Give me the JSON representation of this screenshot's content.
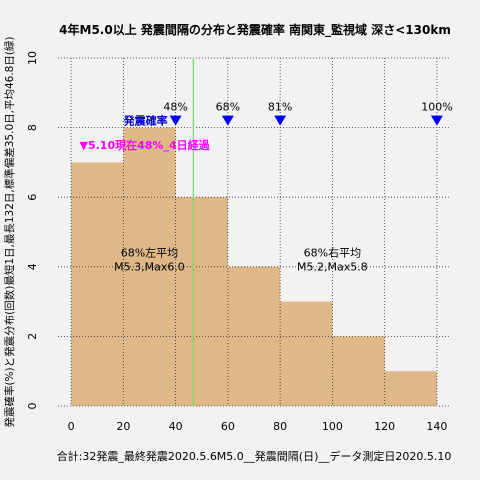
{
  "chart_data": {
    "type": "bar",
    "title": "4年M5.0以上 発震間隔の分布と発震確率 南関東_監視域 深さ<130km",
    "ylabel": "発震確率(%)と発震分布(回数)最短1日,最長132日,標準偏差35.0日,平均46.8日(緑)",
    "footer": "合計:32発震_最終発震2020.5.6M5.0__発震間隔(日)__データ測定日2020.5.10",
    "xlim": [
      -5,
      145
    ],
    "ylim": [
      0,
      10
    ],
    "x_ticks": [
      0,
      20,
      40,
      60,
      80,
      100,
      120,
      140
    ],
    "y_ticks": [
      0,
      2,
      4,
      6,
      8,
      10
    ],
    "bin_width": 20,
    "bins": [
      {
        "start": 0,
        "end": 20,
        "count": 7
      },
      {
        "start": 20,
        "end": 40,
        "count": 8
      },
      {
        "start": 40,
        "end": 60,
        "count": 6
      },
      {
        "start": 60,
        "end": 80,
        "count": 4
      },
      {
        "start": 80,
        "end": 100,
        "count": 3
      },
      {
        "start": 100,
        "end": 120,
        "count": 2
      },
      {
        "start": 120,
        "end": 140,
        "count": 1
      }
    ],
    "bar_color": "#deb887",
    "mean_line": {
      "x": 46.8,
      "color": "#66dd66"
    },
    "probability_markers": [
      {
        "x": 40,
        "label": "48%"
      },
      {
        "x": 60,
        "label": "68%"
      },
      {
        "x": 80,
        "label": "81%"
      },
      {
        "x": 140,
        "label": "100%"
      }
    ],
    "marker_y": 8.2,
    "marker_color": "#0000ff",
    "probability_label": "発震確率",
    "current_marker": {
      "x": 4,
      "y": 7.5,
      "label": "▼5.10現在48%_4日経過",
      "color": "#ff00ff"
    },
    "annotations": [
      {
        "x": 30,
        "y": 4.3,
        "lines": [
          "68%左平均",
          "M5.3,Max6.0"
        ]
      },
      {
        "x": 100,
        "y": 4.3,
        "lines": [
          "68%右平均",
          "M5.2,Max5.8"
        ]
      }
    ]
  }
}
